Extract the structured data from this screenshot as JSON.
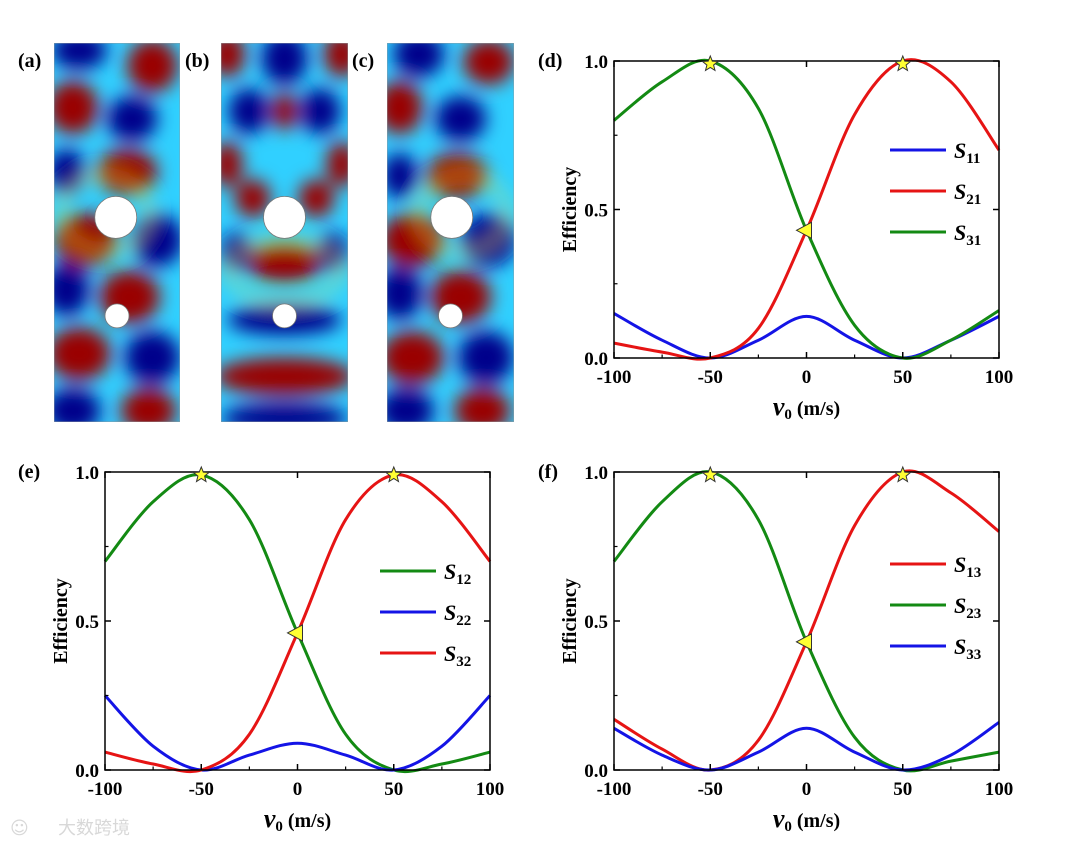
{
  "panel_labels": [
    "(a)",
    "(b)",
    "(c)",
    "(d)",
    "(e)",
    "(f)"
  ],
  "watermark": "大数跨境",
  "colors": {
    "blue": "#1414e6",
    "red": "#e61414",
    "green": "#138a13",
    "marker_fill": "#ffff33",
    "field_blue": "#00008b",
    "field_red": "#9a0000",
    "field_cyan": "#30d0ff"
  },
  "field_maps": [
    {
      "panel": "(a)",
      "description_type": "pressure-field",
      "colormap": "jet",
      "obstacles": 2
    },
    {
      "panel": "(b)",
      "description_type": "pressure-field",
      "colormap": "jet",
      "obstacles": 2
    },
    {
      "panel": "(c)",
      "description_type": "pressure-field",
      "colormap": "jet",
      "obstacles": 2
    }
  ],
  "chart_data": [
    {
      "panel": "(d)",
      "type": "line",
      "xlabel_main": "v",
      "xlabel_sub": "0",
      "xlabel_unit": " (m/s)",
      "ylabel": "Efficiency",
      "xlim": [
        -100,
        100
      ],
      "ylim": [
        0,
        1
      ],
      "xticks": [
        "-100",
        "-50",
        "0",
        "50",
        "100"
      ],
      "yticks": [
        "0.0",
        "0.5",
        "1.0"
      ],
      "legend_position": "right",
      "x": [
        -100,
        -75,
        -50,
        -25,
        0,
        25,
        50,
        75,
        100
      ],
      "series": [
        {
          "name_main": "S",
          "name_sub": "11",
          "color": "blue",
          "values": [
            0.15,
            0.06,
            0.0,
            0.06,
            0.14,
            0.06,
            0.0,
            0.06,
            0.14
          ]
        },
        {
          "name_main": "S",
          "name_sub": "21",
          "color": "red",
          "values": [
            0.05,
            0.02,
            0.0,
            0.1,
            0.43,
            0.82,
            1.0,
            0.93,
            0.7
          ]
        },
        {
          "name_main": "S",
          "name_sub": "31",
          "color": "green",
          "values": [
            0.8,
            0.93,
            1.0,
            0.84,
            0.43,
            0.11,
            0.0,
            0.06,
            0.16
          ]
        }
      ],
      "markers": [
        {
          "shape": "star",
          "x": -50,
          "y": 0.99
        },
        {
          "shape": "star",
          "x": 50,
          "y": 0.99
        },
        {
          "shape": "triangle-left",
          "x": 0,
          "y": 0.43
        }
      ]
    },
    {
      "panel": "(e)",
      "type": "line",
      "xlabel_main": "v",
      "xlabel_sub": "0",
      "xlabel_unit": " (m/s)",
      "ylabel": "Efficiency",
      "xlim": [
        -100,
        100
      ],
      "ylim": [
        0,
        1
      ],
      "xticks": [
        "-100",
        "-50",
        "0",
        "50",
        "100"
      ],
      "yticks": [
        "0.0",
        "0.5",
        "1.0"
      ],
      "legend_position": "right",
      "x": [
        -100,
        -75,
        -50,
        -25,
        0,
        25,
        50,
        75,
        100
      ],
      "series": [
        {
          "name_main": "S",
          "name_sub": "12",
          "color": "green",
          "values": [
            0.7,
            0.9,
            0.99,
            0.84,
            0.46,
            0.12,
            0.0,
            0.02,
            0.06
          ]
        },
        {
          "name_main": "S",
          "name_sub": "22",
          "color": "blue",
          "values": [
            0.25,
            0.08,
            0.0,
            0.05,
            0.09,
            0.05,
            0.0,
            0.08,
            0.25
          ]
        },
        {
          "name_main": "S",
          "name_sub": "32",
          "color": "red",
          "values": [
            0.06,
            0.02,
            0.0,
            0.12,
            0.46,
            0.84,
            0.99,
            0.9,
            0.7
          ]
        }
      ],
      "markers": [
        {
          "shape": "star",
          "x": -50,
          "y": 0.99
        },
        {
          "shape": "star",
          "x": 50,
          "y": 0.99
        },
        {
          "shape": "triangle-left",
          "x": 0,
          "y": 0.46
        }
      ]
    },
    {
      "panel": "(f)",
      "type": "line",
      "xlabel_main": "v",
      "xlabel_sub": "0",
      "xlabel_unit": " (m/s)",
      "ylabel": "Efficiency",
      "xlim": [
        -100,
        100
      ],
      "ylim": [
        0,
        1
      ],
      "xticks": [
        "-100",
        "-50",
        "0",
        "50",
        "100"
      ],
      "yticks": [
        "0.0",
        "0.5",
        "1.0"
      ],
      "legend_position": "right",
      "x": [
        -100,
        -75,
        -50,
        -25,
        0,
        25,
        50,
        75,
        100
      ],
      "series": [
        {
          "name_main": "S",
          "name_sub": "13",
          "color": "red",
          "values": [
            0.17,
            0.07,
            0.0,
            0.1,
            0.43,
            0.82,
            1.0,
            0.93,
            0.8
          ]
        },
        {
          "name_main": "S",
          "name_sub": "23",
          "color": "green",
          "values": [
            0.7,
            0.9,
            1.0,
            0.84,
            0.43,
            0.11,
            0.0,
            0.03,
            0.06
          ]
        },
        {
          "name_main": "S",
          "name_sub": "33",
          "color": "blue",
          "values": [
            0.14,
            0.05,
            0.0,
            0.06,
            0.14,
            0.06,
            0.0,
            0.05,
            0.16
          ]
        }
      ],
      "markers": [
        {
          "shape": "star",
          "x": -50,
          "y": 0.99
        },
        {
          "shape": "star",
          "x": 50,
          "y": 0.99
        },
        {
          "shape": "triangle-left",
          "x": 0,
          "y": 0.43
        }
      ]
    }
  ]
}
